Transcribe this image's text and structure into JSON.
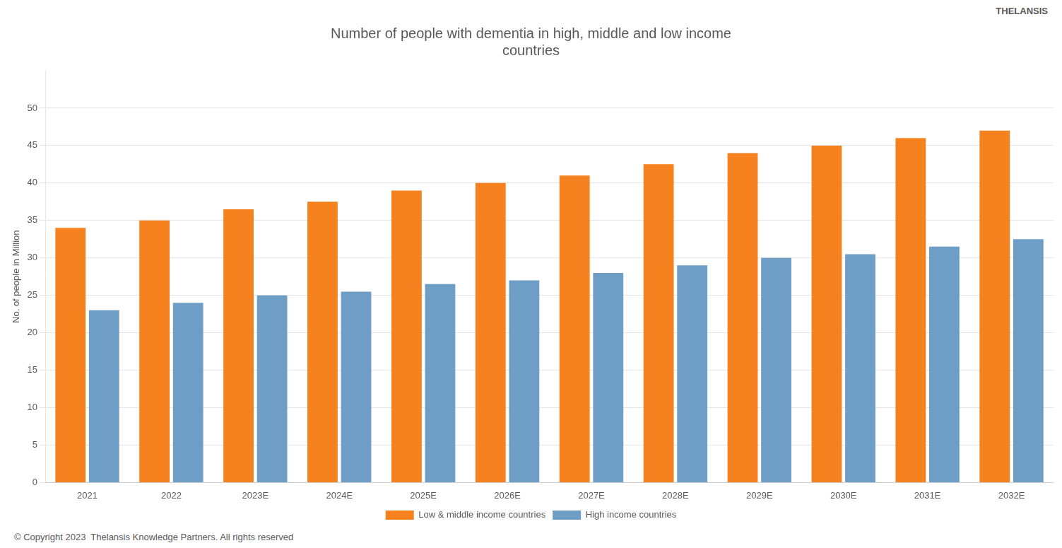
{
  "chart_data": {
    "type": "bar",
    "title": "Number of people with dementia in high, middle and low income\ncountries",
    "ylabel": "No. of people in Million",
    "categories": [
      "2021",
      "2022",
      "2023E",
      "2024E",
      "2025E",
      "2026E",
      "2027E",
      "2028E",
      "2029E",
      "2030E",
      "2031E",
      "2032E"
    ],
    "series": [
      {
        "name": "Low & middle income countries",
        "color": "#F5821F",
        "values": [
          34,
          35,
          36.5,
          37.5,
          39,
          40,
          41,
          42.5,
          44,
          45,
          46,
          47
        ]
      },
      {
        "name": "High income countries",
        "color": "#6E9EC5",
        "values": [
          23,
          24,
          25,
          25.5,
          26.5,
          27,
          28,
          29,
          30,
          30.5,
          31.5,
          32.5
        ]
      }
    ],
    "ylim": [
      0,
      55
    ],
    "yticks": [
      0,
      5,
      10,
      15,
      20,
      25,
      30,
      35,
      40,
      45,
      50
    ],
    "grid": true,
    "legend": "bottom",
    "annotations": [
      "© Copyright 2023  Thelansis Knowledge Partners. All rights reserved",
      "THELANSIS"
    ]
  }
}
